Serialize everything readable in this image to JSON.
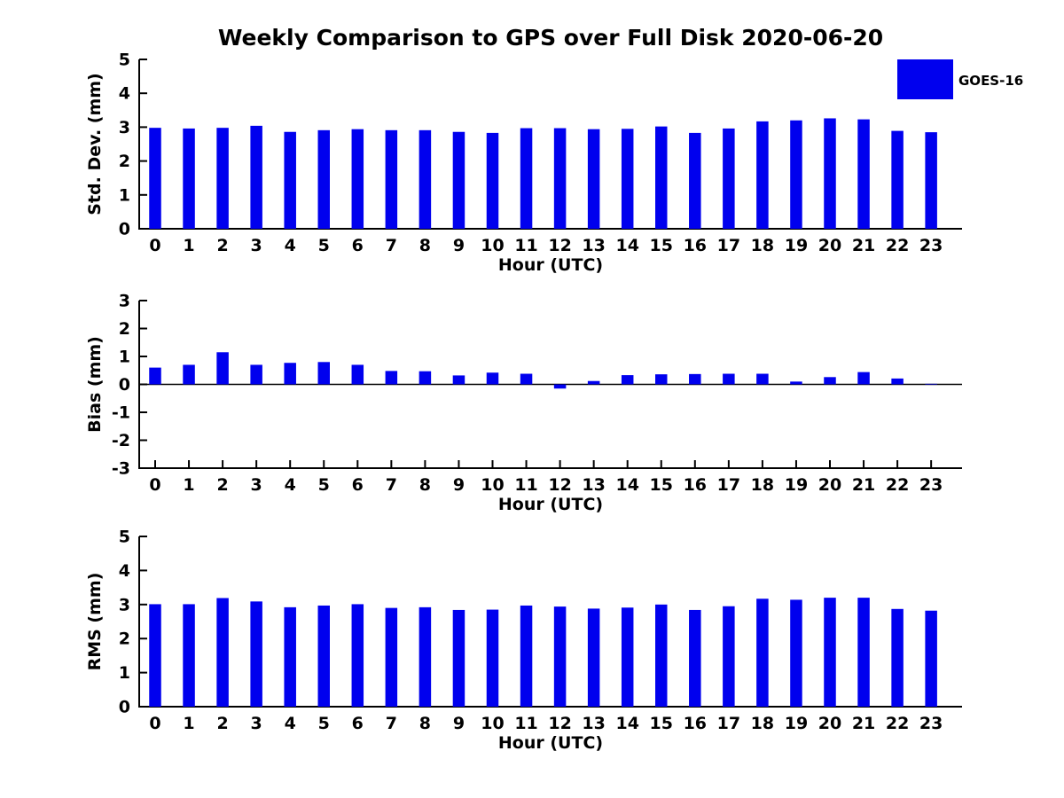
{
  "title": "Weekly Comparison to GPS over Full Disk 2020-06-20",
  "legend": {
    "label": "GOES-16",
    "position": "upper right"
  },
  "colors": {
    "bar": "#0000EE",
    "axis": "#000000",
    "background": "#FFFFFF"
  },
  "chart_data": [
    {
      "type": "bar",
      "series_name": "GOES-16",
      "ylabel": "Std. Dev. (mm)",
      "xlabel": "Hour (UTC)",
      "ylim": [
        0,
        5
      ],
      "yticks": [
        0,
        1,
        2,
        3,
        4,
        5
      ],
      "grid": false,
      "categories": [
        "0",
        "1",
        "2",
        "3",
        "4",
        "5",
        "6",
        "7",
        "8",
        "9",
        "10",
        "11",
        "12",
        "13",
        "14",
        "15",
        "16",
        "17",
        "18",
        "19",
        "20",
        "21",
        "22",
        "23"
      ],
      "values": [
        2.98,
        2.96,
        2.98,
        3.04,
        2.86,
        2.91,
        2.94,
        2.91,
        2.91,
        2.86,
        2.83,
        2.97,
        2.97,
        2.94,
        2.95,
        3.02,
        2.83,
        2.96,
        3.17,
        3.2,
        3.26,
        3.23,
        2.89,
        2.85
      ]
    },
    {
      "type": "bar",
      "series_name": "GOES-16",
      "ylabel": "Bias (mm)",
      "xlabel": "Hour (UTC)",
      "ylim": [
        -3,
        3
      ],
      "yticks": [
        -3,
        -2,
        -1,
        0,
        1,
        2,
        3
      ],
      "grid": false,
      "categories": [
        "0",
        "1",
        "2",
        "3",
        "4",
        "5",
        "6",
        "7",
        "8",
        "9",
        "10",
        "11",
        "12",
        "13",
        "14",
        "15",
        "16",
        "17",
        "18",
        "19",
        "20",
        "21",
        "22",
        "23"
      ],
      "values": [
        0.6,
        0.7,
        1.15,
        0.7,
        0.77,
        0.8,
        0.7,
        0.48,
        0.47,
        0.32,
        0.42,
        0.38,
        -0.15,
        0.12,
        0.33,
        0.36,
        0.37,
        0.38,
        0.38,
        0.1,
        0.26,
        0.44,
        0.21,
        0.02
      ]
    },
    {
      "type": "bar",
      "series_name": "GOES-16",
      "ylabel": "RMS (mm)",
      "xlabel": "Hour (UTC)",
      "ylim": [
        0,
        5
      ],
      "yticks": [
        0,
        1,
        2,
        3,
        4,
        5
      ],
      "grid": false,
      "categories": [
        "0",
        "1",
        "2",
        "3",
        "4",
        "5",
        "6",
        "7",
        "8",
        "9",
        "10",
        "11",
        "12",
        "13",
        "14",
        "15",
        "16",
        "17",
        "18",
        "19",
        "20",
        "21",
        "22",
        "23"
      ],
      "values": [
        3.01,
        3.01,
        3.19,
        3.09,
        2.92,
        2.97,
        3.01,
        2.9,
        2.92,
        2.84,
        2.85,
        2.97,
        2.94,
        2.88,
        2.91,
        3.0,
        2.84,
        2.95,
        3.17,
        3.14,
        3.2,
        3.2,
        2.87,
        2.82
      ]
    }
  ]
}
